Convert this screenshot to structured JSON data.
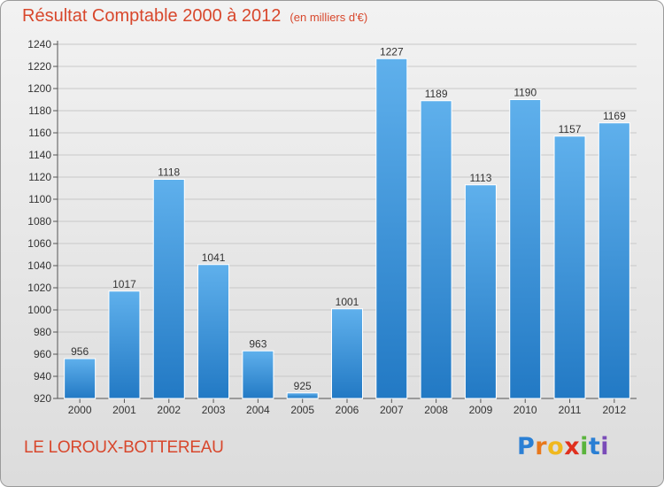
{
  "chart_data": {
    "type": "bar",
    "title": "Résultat Comptable 2000 à 2012",
    "subtitle": "(en milliers d'€)",
    "categories": [
      "2000",
      "2001",
      "2002",
      "2003",
      "2004",
      "2005",
      "2006",
      "2007",
      "2008",
      "2009",
      "2010",
      "2011",
      "2012"
    ],
    "values": [
      956,
      1017,
      1118,
      1041,
      963,
      925,
      1001,
      1227,
      1189,
      1113,
      1190,
      1157,
      1169
    ],
    "ylim": [
      920,
      1240
    ],
    "ytick_step": 20,
    "grid": true,
    "bar_color": "#3d9ae0",
    "bar_color_dark": "#1f78c4"
  },
  "commune": "LE LOROUX-BOTTEREAU",
  "logo": {
    "letters": [
      "P",
      "r",
      "o",
      "x",
      "i",
      "t",
      "i"
    ],
    "colors": [
      "#2a7fd4",
      "#e8781c",
      "#f0b81e",
      "#e0301e",
      "#5ab43c",
      "#2a7fd4",
      "#7a4bb8"
    ]
  }
}
